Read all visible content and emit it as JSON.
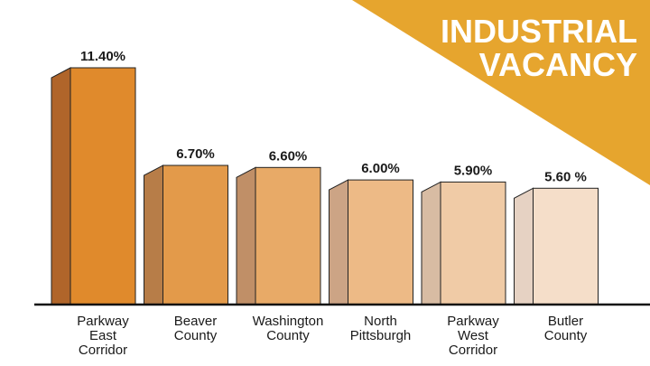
{
  "banner": {
    "line1": "INDUSTRIAL",
    "line2": "VACANCY",
    "color": "#E6A52E"
  },
  "chart_data": {
    "type": "bar",
    "title": "INDUSTRIAL VACANCY",
    "categories": [
      [
        "Parkway",
        "East",
        "Corridor"
      ],
      [
        "Beaver",
        "County"
      ],
      [
        "Washington",
        "County"
      ],
      [
        "North",
        "Pittsburgh"
      ],
      [
        "Parkway",
        "West",
        "Corridor"
      ],
      [
        "Butler",
        "County"
      ]
    ],
    "values": [
      11.4,
      6.7,
      6.6,
      6.0,
      5.9,
      5.6
    ],
    "value_labels": [
      "11.40%",
      "6.70%",
      "6.60%",
      "6.00%",
      "5.90%",
      "5.60 %"
    ],
    "unit": "%",
    "xlabel": "",
    "ylabel": "",
    "grid": false,
    "bar_colors": [
      {
        "front": "#E08A2C",
        "side": "#B0652A"
      },
      {
        "front": "#E39A4A",
        "side": "#B77D48"
      },
      {
        "front": "#E8AA67",
        "side": "#C08F67"
      },
      {
        "front": "#EDBA86",
        "side": "#CCA485"
      },
      {
        "front": "#F0CBA6",
        "side": "#D8BCA3"
      },
      {
        "front": "#F5DEC9",
        "side": "#E6D2C3"
      }
    ]
  }
}
